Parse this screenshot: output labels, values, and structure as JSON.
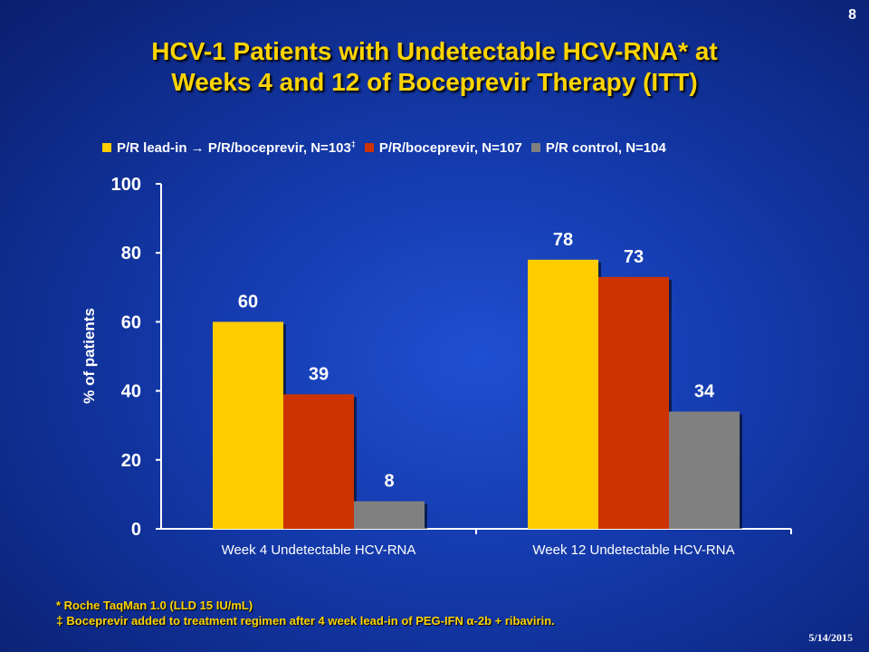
{
  "page_number": "8",
  "title_line1": "HCV-1 Patients with Undetectable HCV-RNA* at",
  "title_line2": "Weeks 4 and 12 of Boceprevir Therapy (ITT)",
  "footnotes": {
    "note1": "* Roche TaqMan 1.0 (LLD 15 IU/mL)",
    "note2_mark": "‡",
    "note2": "Boceprevir added to treatment regimen after 4 week lead-in of PEG-IFN α-2b + ribavirin."
  },
  "date": "5/14/2015",
  "colors": {
    "background": "#1338a8",
    "title": "#ffd400",
    "series1": "#ffcc00",
    "series2": "#cc3300",
    "series3": "#808080"
  },
  "chart_data": {
    "type": "bar",
    "categories": [
      "Week 4 Undetectable HCV-RNA",
      "Week 12 Undetectable HCV-RNA"
    ],
    "series": [
      {
        "name": "P/R lead-in → P/R/boceprevir, N=103",
        "name_suffix": "‡",
        "values": [
          60,
          78
        ],
        "color": "#ffcc00"
      },
      {
        "name": "P/R/boceprevir, N=107",
        "values": [
          39,
          73
        ],
        "color": "#cc3300"
      },
      {
        "name": "P/R control, N=104",
        "values": [
          8,
          34
        ],
        "color": "#808080"
      }
    ],
    "ylabel": "% of patients",
    "xlabel": "",
    "ylim": [
      0,
      100
    ],
    "yticks": [
      0,
      20,
      40,
      60,
      80,
      100
    ],
    "legend_position": "top",
    "grid": false,
    "data_labels": true
  }
}
